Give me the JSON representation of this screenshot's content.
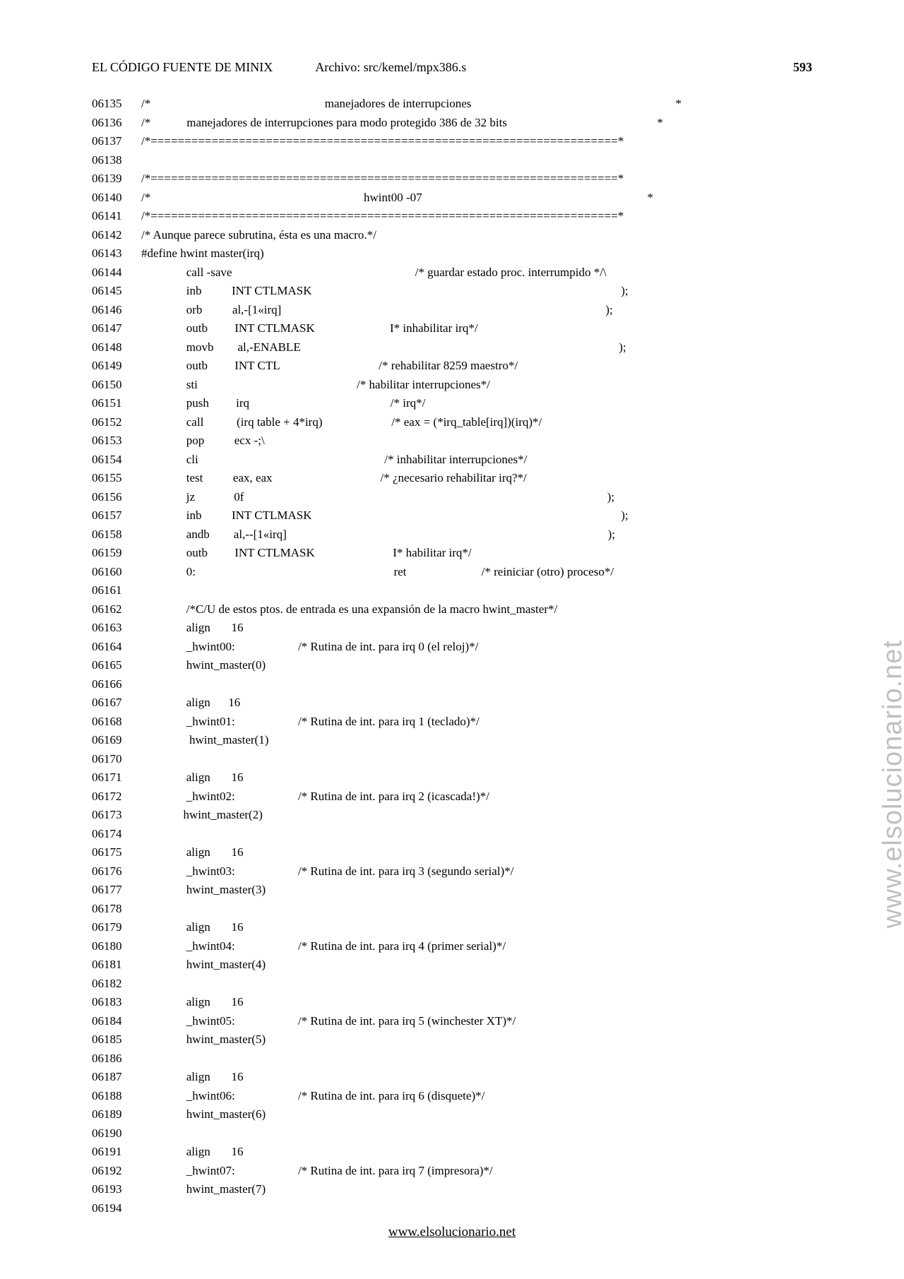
{
  "header": {
    "title": "EL CÓDIGO FUENTE DE MINIX",
    "file_label": "Archivo: src/kemel/mpx386.s",
    "page_number": "593"
  },
  "watermark": "www.elsolucionario.net",
  "footer_link": "www.elsolucionario.net",
  "lines": [
    {
      "n": "06135",
      "t": "/*                                                          manejadores de interrupciones                                                                    *"
    },
    {
      "n": "06136",
      "t": "/*            manejadores de interrupciones para modo protegido 386 de 32 bits                                                  *"
    },
    {
      "n": "06137",
      "t": "/*=====================================================================*"
    },
    {
      "n": "06138",
      "t": ""
    },
    {
      "n": "06139",
      "t": "/*=====================================================================*"
    },
    {
      "n": "06140",
      "t": "/*                                                                       hwint00 -07                                                                           *"
    },
    {
      "n": "06141",
      "t": "/*=====================================================================*"
    },
    {
      "n": "06142",
      "t": "/* Aunque parece subrutina, ésta es una macro.*/"
    },
    {
      "n": "06143",
      "t": "#define hwint master(irq)"
    },
    {
      "n": "06144",
      "t": "               call -save                                                             /* guardar estado proc. interrumpido */\\"
    },
    {
      "n": "06145",
      "t": "               inb          INT CTLMASK                                                                                                       );"
    },
    {
      "n": "06146",
      "t": "               orb          al,-[1«irq]                                                                                                            );"
    },
    {
      "n": "06147",
      "t": "               outb         INT CTLMASK                         I* inhabilitar irq*/"
    },
    {
      "n": "06148",
      "t": "               movb        al,-ENABLE                                                                                                          );"
    },
    {
      "n": "06149",
      "t": "               outb         INT CTL                                 /* rehabilitar 8259 maestro*/"
    },
    {
      "n": "06150",
      "t": "               sti                                                     /* habilitar interrupciones*/"
    },
    {
      "n": "06151",
      "t": "               push         irq                                               /* irq*/"
    },
    {
      "n": "06152",
      "t": "               call           (irq table + 4*irq)                       /* eax = (*irq_table[irq])(irq)*/"
    },
    {
      "n": "06153",
      "t": "               pop          ecx -;\\"
    },
    {
      "n": "06154",
      "t": "               cli                                                              /* inhabilitar interrupciones*/"
    },
    {
      "n": "06155",
      "t": "               test          eax, eax                                    /* ¿necesario rehabilitar irq?*/"
    },
    {
      "n": "06156",
      "t": "               jz             0f                                                                                                                         );"
    },
    {
      "n": "06157",
      "t": "               inb          INT CTLMASK                                                                                                       );"
    },
    {
      "n": "06158",
      "t": "               andb        al,--[1«irq]                                                                                                           );"
    },
    {
      "n": "06159",
      "t": "               outb         INT CTLMASK                          I* habilitar irq*/"
    },
    {
      "n": "06160",
      "t": "               0:                                                                  ret                         /* reiniciar (otro) proceso*/"
    },
    {
      "n": "06161",
      "t": ""
    },
    {
      "n": "06162",
      "t": "               /*C/U de estos ptos. de entrada es una expansión de la macro hwint_master*/"
    },
    {
      "n": "06163",
      "t": "               align       16"
    },
    {
      "n": "06164",
      "t": "               _hwint00:                     /* Rutina de int. para irq 0 (el reloj)*/"
    },
    {
      "n": "06165",
      "t": "               hwint_master(0)"
    },
    {
      "n": "06166",
      "t": ""
    },
    {
      "n": "06167",
      "t": "               align      16"
    },
    {
      "n": "06168",
      "t": "               _hwint01:                     /* Rutina de int. para irq 1 (teclado)*/"
    },
    {
      "n": "06169",
      "t": "                hwint_master(1)"
    },
    {
      "n": "06170",
      "t": ""
    },
    {
      "n": "06171",
      "t": "               align       16"
    },
    {
      "n": "06172",
      "t": "               _hwint02:                     /* Rutina de int. para irq 2 (icascada!)*/"
    },
    {
      "n": "06173",
      "t": "              hwint_master(2)"
    },
    {
      "n": "06174",
      "t": ""
    },
    {
      "n": "06175",
      "t": "               align       16"
    },
    {
      "n": "06176",
      "t": "               _hwint03:                     /* Rutina de int. para irq 3 (segundo serial)*/"
    },
    {
      "n": "06177",
      "t": "               hwint_master(3)"
    },
    {
      "n": "06178",
      "t": ""
    },
    {
      "n": "06179",
      "t": "               align       16"
    },
    {
      "n": "06180",
      "t": "               _hwint04:                     /* Rutina de int. para irq 4 (primer serial)*/"
    },
    {
      "n": "06181",
      "t": "               hwint_master(4)"
    },
    {
      "n": "06182",
      "t": ""
    },
    {
      "n": "06183",
      "t": "               align       16"
    },
    {
      "n": "06184",
      "t": "               _hwint05:                     /* Rutina de int. para irq 5 (winchester XT)*/"
    },
    {
      "n": "06185",
      "t": "               hwint_master(5)"
    },
    {
      "n": "06186",
      "t": ""
    },
    {
      "n": "06187",
      "t": "               align       16"
    },
    {
      "n": "06188",
      "t": "               _hwint06:                     /* Rutina de int. para irq 6 (disquete)*/"
    },
    {
      "n": "06189",
      "t": "               hwint_master(6)"
    },
    {
      "n": "06190",
      "t": ""
    },
    {
      "n": "06191",
      "t": "               align       16"
    },
    {
      "n": "06192",
      "t": "               _hwint07:                     /* Rutina de int. para irq 7 (impresora)*/"
    },
    {
      "n": "06193",
      "t": "               hwint_master(7)"
    },
    {
      "n": "06194",
      "t": ""
    }
  ]
}
